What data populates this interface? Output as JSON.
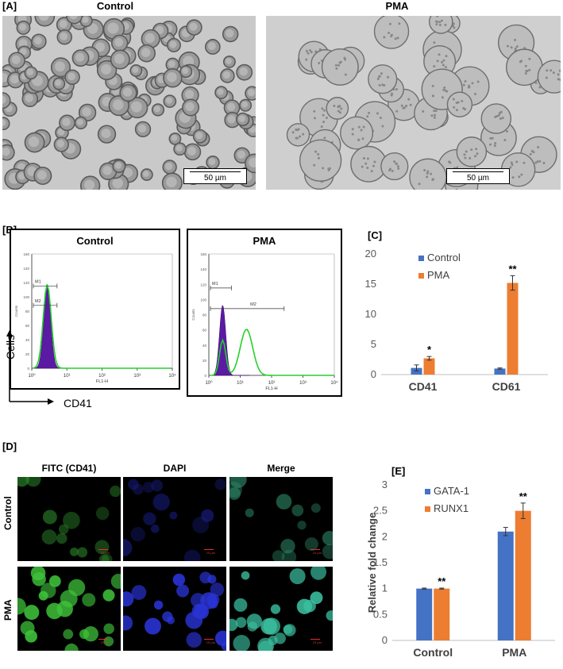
{
  "panelA": {
    "label": "[A]",
    "left": {
      "title": "Control",
      "scalebar": "50 µm"
    },
    "right": {
      "title": "PMA",
      "scalebar": "50 µm"
    }
  },
  "panelB": {
    "label": "[B]",
    "left_title": "Control",
    "right_title": "PMA",
    "y_axis_label": "Cells",
    "x_axis_label": "CD41",
    "tick_labels_x": [
      "10⁰",
      "10¹",
      "10²",
      "10³",
      "10⁴"
    ],
    "tick_labels_y": [
      "0",
      "20",
      "40",
      "60",
      "80",
      "100",
      "120",
      "140",
      "160"
    ],
    "fl1h": "FL1-H",
    "counts": "Counts",
    "gates_control": [
      "M1",
      "M2"
    ],
    "gates_pma": [
      "M1",
      "M2"
    ]
  },
  "panelC": {
    "label": "[C]",
    "chart_data": {
      "type": "bar",
      "categories": [
        "CD41",
        "CD61"
      ],
      "series": [
        {
          "name": "Control",
          "values": [
            1.1,
            1.0
          ],
          "errors": [
            0.5,
            0.1
          ],
          "color": "#4472C4"
        },
        {
          "name": "PMA",
          "values": [
            2.7,
            15.2
          ],
          "errors": [
            0.3,
            1.2
          ],
          "color": "#ED7D31"
        }
      ],
      "significance": [
        [
          "",
          "*"
        ],
        [
          "",
          "**"
        ]
      ],
      "ylim": [
        0,
        20
      ],
      "yticks": [
        0,
        5,
        10,
        15,
        20
      ],
      "legend_placement": "top-left"
    }
  },
  "panelD": {
    "label": "[D]",
    "columns": [
      "FITC (CD41)",
      "DAPI",
      "Merge"
    ],
    "rows": [
      "Control",
      "PMA"
    ],
    "scale_text": "10 µm"
  },
  "panelE": {
    "label": "[E]",
    "chart_data": {
      "type": "bar",
      "categories": [
        "Control",
        "PMA"
      ],
      "series": [
        {
          "name": "GATA-1",
          "values": [
            1.0,
            2.1
          ],
          "errors": [
            0.01,
            0.08
          ],
          "color": "#4472C4"
        },
        {
          "name": "RUNX1",
          "values": [
            1.0,
            2.5
          ],
          "errors": [
            0.01,
            0.15
          ],
          "color": "#ED7D31"
        }
      ],
      "significance": [
        [
          "",
          "**"
        ],
        [
          "",
          "**"
        ]
      ],
      "ylabel": "Relative fold change",
      "ylim": [
        0,
        3
      ],
      "yticks": [
        0,
        0.5,
        1,
        1.5,
        2,
        2.5,
        3
      ],
      "legend_placement": "top-left"
    }
  }
}
